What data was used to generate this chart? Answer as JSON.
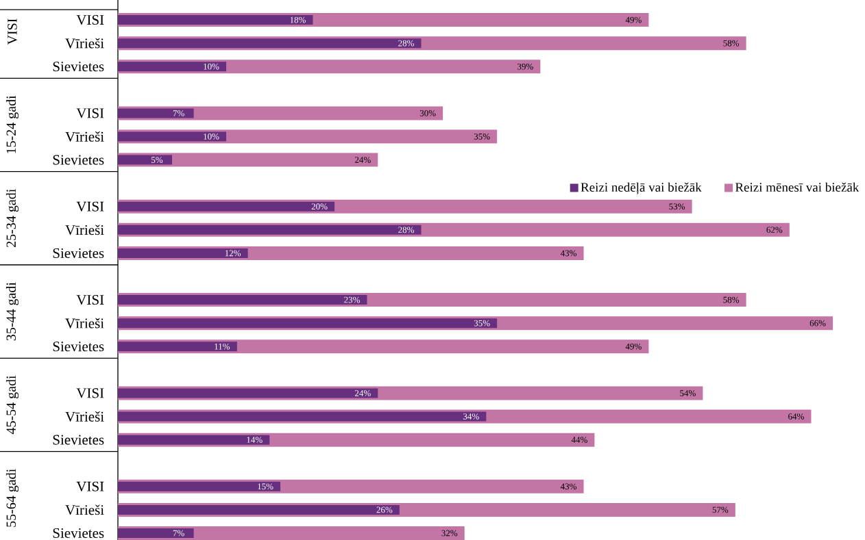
{
  "chart_data": {
    "type": "bar",
    "orientation": "horizontal",
    "categories": [
      "VISI",
      "Vīrieši",
      "Sievietes",
      "VISI",
      "Vīrieši",
      "Sievietes",
      "VISI",
      "Vīrieši",
      "Sievietes",
      "VISI",
      "Vīrieši",
      "Sievietes",
      "VISI",
      "Vīrieši",
      "Sievietes",
      "VISI",
      "Vīrieši",
      "Sievietes"
    ],
    "annotations": [
      "VISI",
      "15-24 gadi",
      "25-34 gadi",
      "35-44 gadi",
      "45-54 gadi",
      "55-64 gadi"
    ],
    "series": [
      {
        "name": "Reizi nedēļā vai biežāk",
        "color": "#66307f",
        "values": [
          18,
          28,
          10,
          7,
          10,
          5,
          20,
          28,
          12,
          23,
          35,
          11,
          24,
          34,
          14,
          15,
          26,
          7
        ],
        "value_labels": [
          "18%",
          "28%",
          "10%",
          "7%",
          "10%",
          "5%",
          "20%",
          "28%",
          "12%",
          "23%",
          "35%",
          "11%",
          "24%",
          "34%",
          "14%",
          "15%",
          "26%",
          "7%"
        ]
      },
      {
        "name": "Reizi mēnesī vai biežāk",
        "color": "#c376a6",
        "values": [
          49,
          58,
          39,
          30,
          35,
          24,
          53,
          62,
          43,
          58,
          66,
          49,
          54,
          64,
          44,
          43,
          57,
          32
        ],
        "value_labels": [
          "49%",
          "58%",
          "39%",
          "30%",
          "35%",
          "24%",
          "53%",
          "62%",
          "43%",
          "58%",
          "66%",
          "49%",
          "54%",
          "64%",
          "44%",
          "43%",
          "57%",
          "32%"
        ]
      }
    ],
    "legend": "right"
  }
}
